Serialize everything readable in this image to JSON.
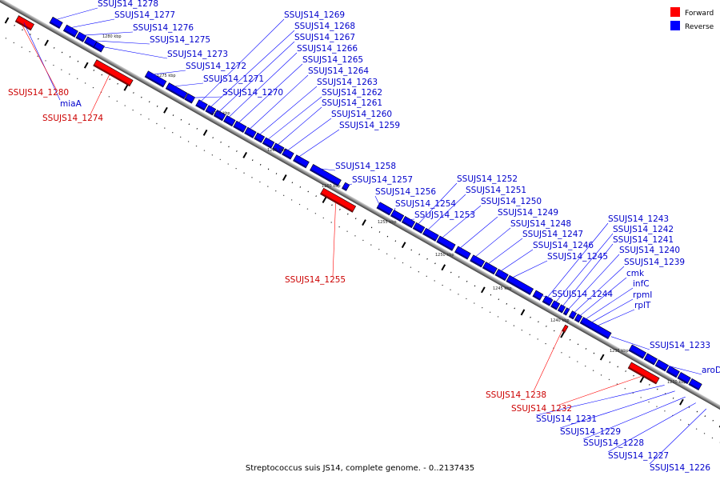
{
  "caption": "Streptococcus suis JS14, complete genome. - 0..2137435",
  "legend": [
    {
      "name": "Forward",
      "color": "#ff0000"
    },
    {
      "name": "Reverse",
      "color": "#0000ff"
    }
  ],
  "scale_labels": [
    "1280 kbp",
    "1275 kbp",
    "1270 kbp",
    "1265 kbp",
    "1260 kbp",
    "1255 kbp",
    "1250 kbp",
    "1245 kbp",
    "1240 kbp",
    "1235 kbp",
    "1230 kbp"
  ],
  "forward_labels": [
    "SSUJS14_1280",
    "SSUJS14_1274",
    "SSUJS14_1255",
    "SSUJS14_1238",
    "SSUJS14_1232"
  ],
  "reverse_labels": [
    "SSUJS14_1278",
    "SSUJS14_1277",
    "SSUJS14_1276",
    "SSUJS14_1275",
    "SSUJS14_1273",
    "SSUJS14_1272",
    "SSUJS14_1271",
    "SSUJS14_1270",
    "miaA",
    "SSUJS14_1269",
    "SSUJS14_1268",
    "SSUJS14_1267",
    "SSUJS14_1266",
    "SSUJS14_1265",
    "SSUJS14_1264",
    "SSUJS14_1263",
    "SSUJS14_1262",
    "SSUJS14_1261",
    "SSUJS14_1260",
    "SSUJS14_1259",
    "SSUJS14_1258",
    "SSUJS14_1257",
    "SSUJS14_1256",
    "SSUJS14_1254",
    "SSUJS14_1253",
    "SSUJS14_1252",
    "SSUJS14_1251",
    "SSUJS14_1250",
    "SSUJS14_1249",
    "SSUJS14_1248",
    "SSUJS14_1247",
    "SSUJS14_1246",
    "SSUJS14_1245",
    "SSUJS14_1244",
    "SSUJS14_1243",
    "SSUJS14_1242",
    "SSUJS14_1241",
    "SSUJS14_1240",
    "SSUJS14_1239",
    "cmk",
    "infC",
    "rpmI",
    "rplT",
    "SSUJS14_1233",
    "aroD",
    "SSUJS14_1231",
    "SSUJS14_1229",
    "SSUJS14_1228",
    "SSUJS14_1227",
    "SSUJS14_1226"
  ]
}
